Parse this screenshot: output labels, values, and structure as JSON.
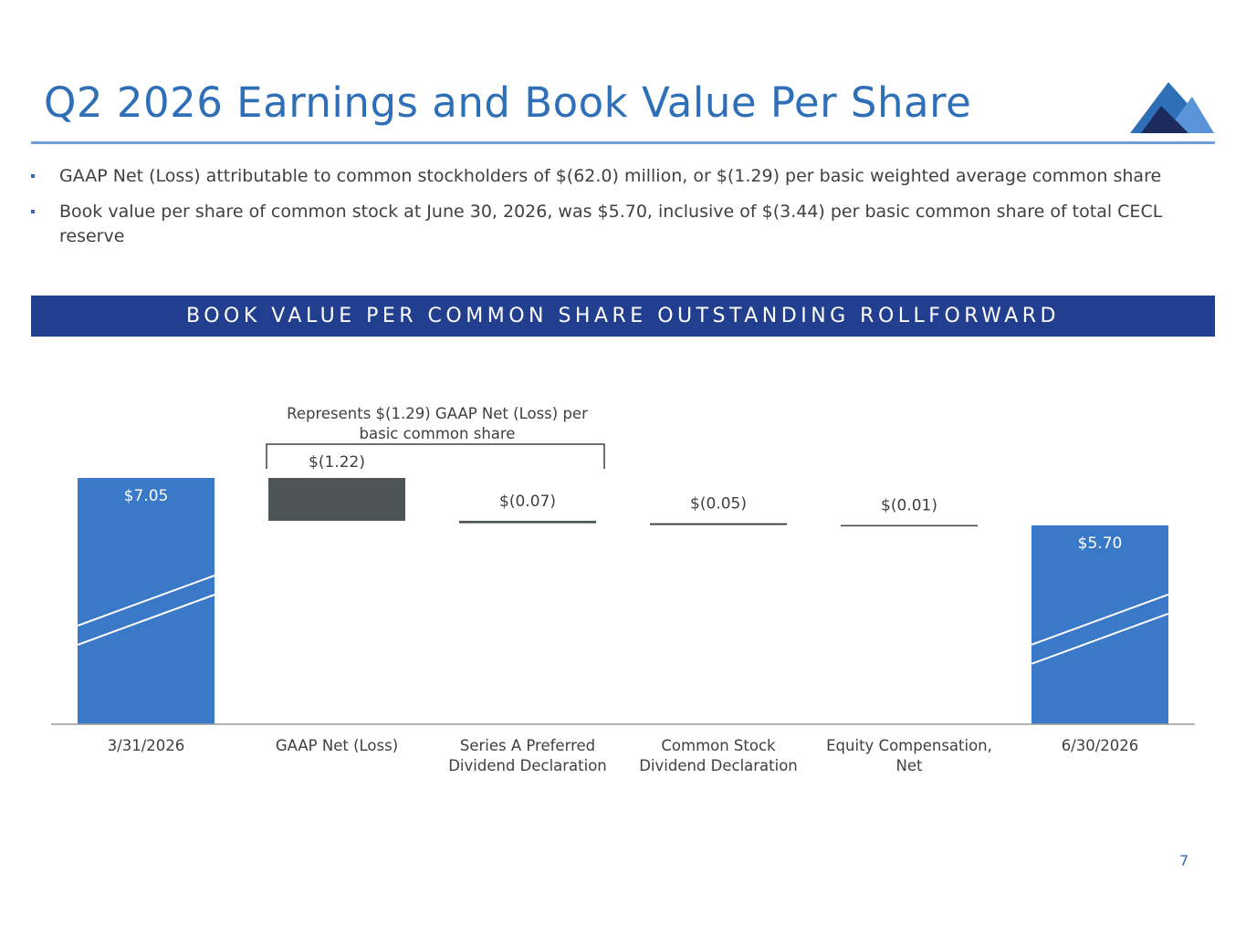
{
  "slide": {
    "title": "Q2 2026 Earnings and Book Value Per Share",
    "page_number": "7",
    "colors": {
      "title": "#2e6fb7",
      "banner": "#223f8f",
      "bar_primary": "#3a78c8",
      "bar_loss": "#4d5557",
      "rule": "#6f9fd8"
    }
  },
  "bullets": [
    "GAAP Net (Loss) attributable to common stockholders of $(62.0) million, or $(1.29) per basic weighted average common share",
    "Book value per share of common stock at June 30, 2026, was $5.70, inclusive of $(3.44) per basic common share of total CECL reserve"
  ],
  "banner": {
    "text": "BOOK VALUE PER COMMON SHARE OUTSTANDING ROLLFORWARD"
  },
  "chart_data": {
    "type": "waterfall",
    "categories": [
      "3/31/2026",
      "GAAP Net (Loss)",
      "Series A Preferred Dividend Declaration",
      "Common Stock Dividend Declaration",
      "Equity Compensation, Net",
      "6/30/2026"
    ],
    "category_lines": [
      [
        "3/31/2026"
      ],
      [
        "GAAP Net (Loss)"
      ],
      [
        "Series A Preferred",
        "Dividend Declaration"
      ],
      [
        "Common Stock",
        "Dividend Declaration"
      ],
      [
        "Equity Compensation,",
        "Net"
      ],
      [
        "6/30/2026"
      ]
    ],
    "values": [
      7.05,
      -1.22,
      -0.07,
      -0.05,
      -0.01,
      5.7
    ],
    "bar_kinds": [
      "total",
      "delta",
      "delta",
      "delta",
      "delta",
      "total"
    ],
    "data_labels": [
      "$7.05",
      "$(1.22)",
      "$(0.07)",
      "$(0.05)",
      "$(0.01)",
      "$5.70"
    ],
    "axis_break": true,
    "y_axis_visible": false,
    "grid": false,
    "annotation": {
      "text_lines": [
        "Represents $(1.29) GAAP Net (Loss) per",
        "basic common share"
      ],
      "spans_categories": [
        1,
        2
      ]
    }
  }
}
